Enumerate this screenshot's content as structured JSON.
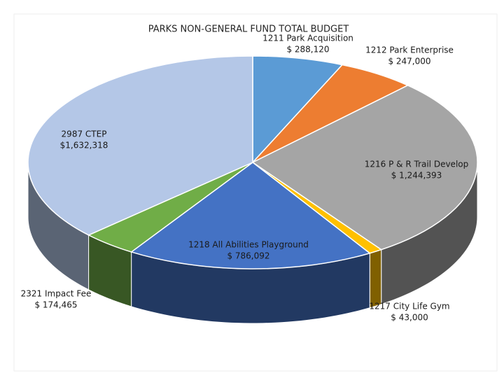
{
  "chart_data": {
    "type": "pie",
    "title": "PARKS NON-GENERAL FUND TOTAL BUDGET",
    "categories": [
      "1211 Park Acquisition",
      "1212 Park Enterprise",
      "1216 P & R Trail Develop",
      "1217 City Life Gym",
      "1218 All Abilities Playground",
      "2321 Impact Fee",
      "2987 CTEP"
    ],
    "values": [
      288120,
      247000,
      1244393,
      43000,
      786092,
      174465,
      1632318
    ],
    "value_labels": [
      "$ 288,120",
      "$ 247,000",
      "$ 1,244,393",
      "$ 43,000",
      "$ 786,092",
      "$ 174,465",
      "$1,632,318"
    ],
    "colors": [
      "#5b9bd5",
      "#ed7d31",
      "#a5a5a5",
      "#ffc000",
      "#4472c4",
      "#70ad47",
      "#b4c7e7"
    ]
  }
}
